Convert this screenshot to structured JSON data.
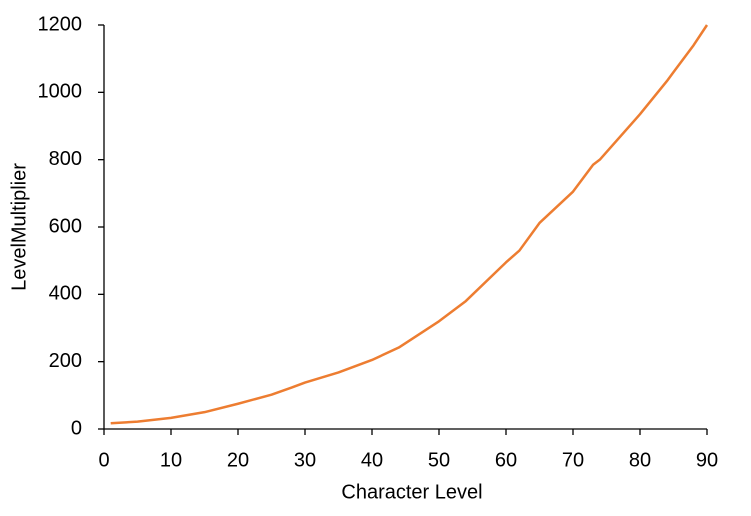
{
  "chart_data": {
    "type": "line",
    "x_label": "Character Level",
    "y_label": "LevelMultiplier",
    "x": [
      1,
      5,
      10,
      15,
      20,
      25,
      28,
      30,
      35,
      40,
      44,
      50,
      54,
      60,
      62,
      65,
      70,
      73,
      74,
      80,
      84,
      85,
      88,
      90
    ],
    "series": [
      {
        "color": "#ed7d31",
        "values": [
          17,
          22,
          33,
          50,
          75,
          102,
          123,
          138,
          168,
          205,
          242,
          320,
          380,
          495,
          530,
          612,
          705,
          785,
          800,
          935,
          1033,
          1060,
          1140,
          1200
        ]
      }
    ],
    "xlim": [
      0,
      90
    ],
    "xticks": [
      0,
      10,
      20,
      30,
      40,
      50,
      60,
      70,
      80,
      90
    ],
    "ylim": [
      0,
      1200
    ],
    "yticks": [
      0,
      200,
      400,
      600,
      800,
      1000,
      1200
    ],
    "grid": false
  }
}
